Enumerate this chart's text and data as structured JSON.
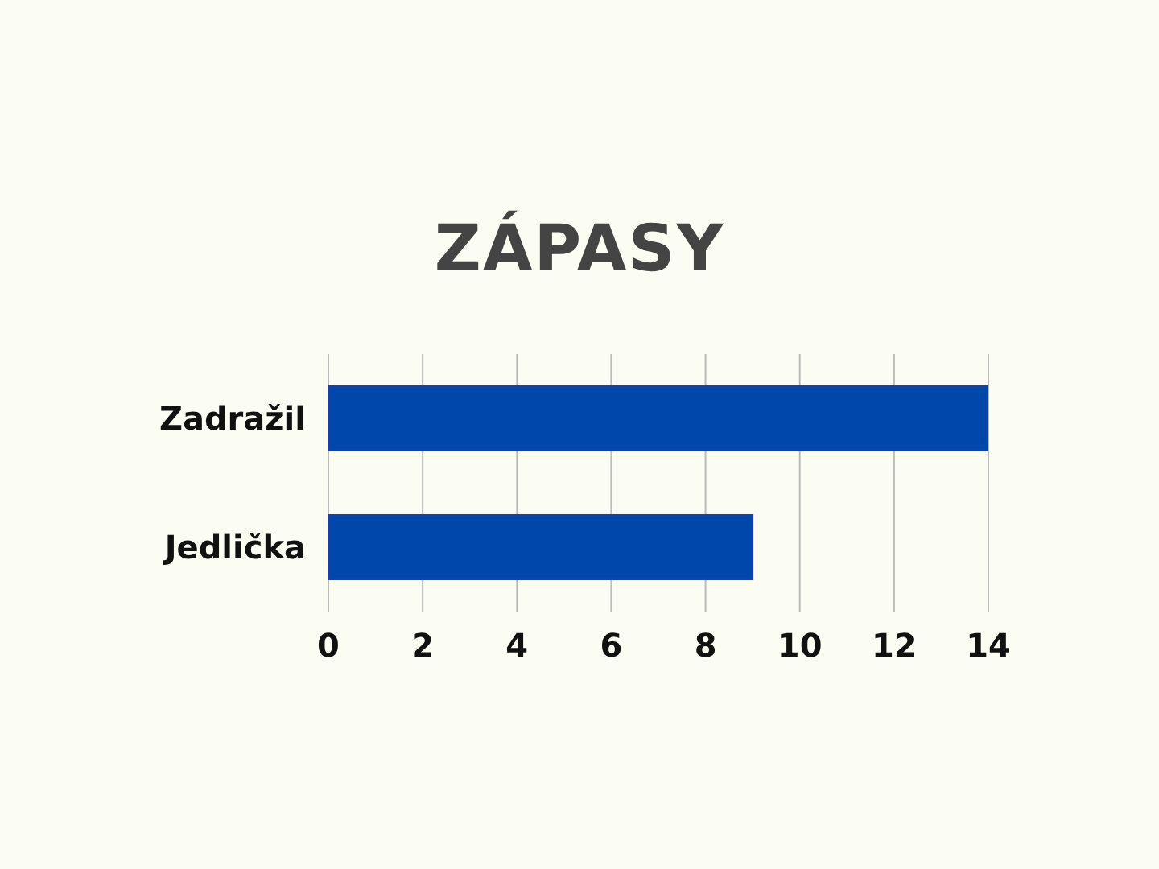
{
  "chart_data": {
    "type": "bar",
    "orientation": "horizontal",
    "title": "ZÁPASY",
    "categories": [
      "Zadražil",
      "Jedlička"
    ],
    "values": [
      14,
      9
    ],
    "color": "#0047ab",
    "xlim": [
      0,
      14
    ],
    "xticks": [
      0,
      2,
      4,
      6,
      8,
      10,
      12,
      14
    ],
    "grid": "x"
  }
}
